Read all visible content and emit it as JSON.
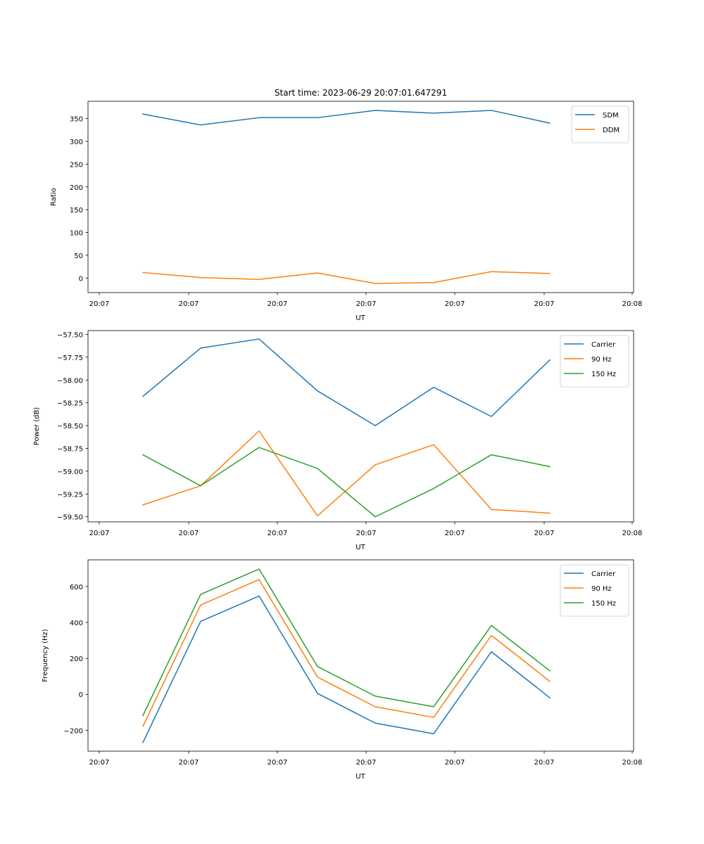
{
  "figure": {
    "title": "Start time: 2023-06-29 20:07:01.647291"
  },
  "chart_data": [
    {
      "type": "line",
      "title": "Start time: 2023-06-29 20:07:01.647291",
      "xlabel": "UT",
      "ylabel": "Ratio",
      "x_tick_labels": [
        "20:07",
        "20:07",
        "20:07",
        "20:07",
        "20:07",
        "20:07",
        "20:08"
      ],
      "y_ticks": [
        0,
        50,
        100,
        150,
        200,
        250,
        300,
        350
      ],
      "ylim": [
        -32,
        388
      ],
      "legend_position": "upper right",
      "grid": false,
      "series": [
        {
          "name": "SDM",
          "color": "#1f77b4",
          "values": [
            360,
            336,
            352,
            352,
            368,
            362,
            368,
            340
          ]
        },
        {
          "name": "DDM",
          "color": "#ff7f0e",
          "values": [
            12,
            1,
            -3,
            11,
            -12,
            -10,
            14,
            10
          ]
        }
      ]
    },
    {
      "type": "line",
      "title": "",
      "xlabel": "UT",
      "ylabel": "Power (dB)",
      "x_tick_labels": [
        "20:07",
        "20:07",
        "20:07",
        "20:07",
        "20:07",
        "20:07",
        "20:08"
      ],
      "y_ticks": [
        -57.5,
        -57.75,
        -58.0,
        -58.25,
        -58.5,
        -58.75,
        -59.0,
        -59.25,
        -59.5
      ],
      "y_tick_labels": [
        "−57.50",
        "−57.75",
        "−58.00",
        "−58.25",
        "−58.50",
        "−58.75",
        "−59.00",
        "−59.25",
        "−59.50"
      ],
      "ylim": [
        -59.556,
        -57.458
      ],
      "legend_position": "upper right",
      "grid": false,
      "series": [
        {
          "name": "Carrier",
          "color": "#1f77b4",
          "values": [
            -58.18,
            -57.65,
            -57.55,
            -58.12,
            -58.5,
            -58.08,
            -58.4,
            -57.78
          ]
        },
        {
          "name": "90 Hz",
          "color": "#ff7f0e",
          "values": [
            -59.37,
            -59.16,
            -58.56,
            -59.49,
            -58.93,
            -58.71,
            -59.42,
            -59.46
          ]
        },
        {
          "name": "150 Hz",
          "color": "#2ca02c",
          "values": [
            -58.82,
            -59.16,
            -58.74,
            -58.97,
            -59.5,
            -59.19,
            -58.82,
            -58.95
          ]
        }
      ]
    },
    {
      "type": "line",
      "title": "",
      "xlabel": "UT",
      "ylabel": "Frequency (Hz)",
      "x_tick_labels": [
        "20:07",
        "20:07",
        "20:07",
        "20:07",
        "20:07",
        "20:07",
        "20:08"
      ],
      "y_ticks": [
        -200,
        0,
        200,
        400,
        600
      ],
      "y_tick_labels": [
        "−200",
        "0",
        "200",
        "400",
        "600"
      ],
      "ylim": [
        -316,
        748
      ],
      "legend_position": "upper right",
      "grid": false,
      "series": [
        {
          "name": "Carrier",
          "color": "#1f77b4",
          "values": [
            -268,
            406,
            547,
            5,
            -160,
            -219,
            237,
            -19
          ]
        },
        {
          "name": "90 Hz",
          "color": "#ff7f0e",
          "values": [
            -177,
            497,
            638,
            96,
            -69,
            -128,
            328,
            72
          ]
        },
        {
          "name": "150 Hz",
          "color": "#2ca02c",
          "values": [
            -118,
            556,
            697,
            155,
            -10,
            -69,
            383,
            131
          ]
        }
      ]
    }
  ]
}
